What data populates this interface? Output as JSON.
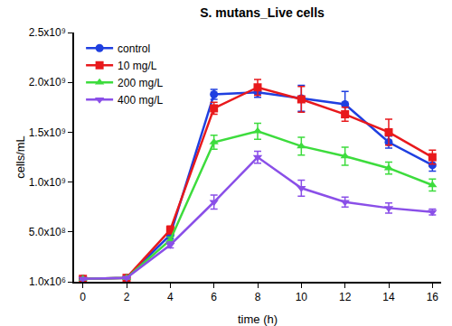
{
  "chart_data": {
    "type": "line",
    "title": "S. mutans_Live cells",
    "x_label": "time (h)",
    "y_label": "cells/mL",
    "x": [
      0,
      2,
      4,
      6,
      8,
      10,
      12,
      14,
      16
    ],
    "series": [
      {
        "name": "control",
        "color": "#1f3fe0",
        "marker": "circle",
        "line_style": "solid",
        "values": [
          30000000,
          40000000,
          470000000,
          1880000000,
          1900000000,
          1840000000,
          1780000000,
          1400000000,
          1170000000
        ],
        "errors": [
          10000000,
          10000000,
          40000000,
          50000000,
          50000000,
          130000000,
          130000000,
          60000000,
          60000000
        ]
      },
      {
        "name": "10 mg/L",
        "color": "#e8191c",
        "marker": "square",
        "line_style": "solid",
        "values": [
          30000000,
          40000000,
          520000000,
          1740000000,
          1950000000,
          1830000000,
          1680000000,
          1500000000,
          1250000000
        ],
        "errors": [
          10000000,
          10000000,
          40000000,
          60000000,
          80000000,
          130000000,
          70000000,
          130000000,
          70000000
        ]
      },
      {
        "name": "200 mg/L",
        "color": "#3ddc3d",
        "marker": "triangle-up",
        "line_style": "solid",
        "values": [
          30000000,
          40000000,
          420000000,
          1400000000,
          1510000000,
          1360000000,
          1260000000,
          1140000000,
          970000000
        ],
        "errors": [
          10000000,
          10000000,
          30000000,
          70000000,
          80000000,
          90000000,
          90000000,
          60000000,
          60000000
        ]
      },
      {
        "name": "400 mg/L",
        "color": "#8a4fe8",
        "marker": "triangle-down",
        "line_style": "solid",
        "values": [
          30000000,
          40000000,
          370000000,
          800000000,
          1250000000,
          940000000,
          800000000,
          740000000,
          700000000
        ],
        "errors": [
          10000000,
          10000000,
          30000000,
          70000000,
          60000000,
          80000000,
          50000000,
          50000000,
          30000000
        ]
      }
    ],
    "xlim": [
      -0.4,
      16.4
    ],
    "xticks": [
      0,
      2,
      4,
      6,
      8,
      10,
      12,
      14,
      16
    ],
    "ylim": [
      1000000,
      2500000000
    ],
    "yticks": [
      {
        "value": 1000000,
        "label": "1.0x10⁶"
      },
      {
        "value": 500000000,
        "label": "5.0x10⁸"
      },
      {
        "value": 1000000000,
        "label": "1.0x10⁹"
      },
      {
        "value": 1500000000,
        "label": "1.5x10⁹"
      },
      {
        "value": 2000000000,
        "label": "2.0x10⁹"
      },
      {
        "value": 2500000000,
        "label": "2.5x10⁹"
      }
    ],
    "grid": false,
    "legend": "upper left"
  }
}
